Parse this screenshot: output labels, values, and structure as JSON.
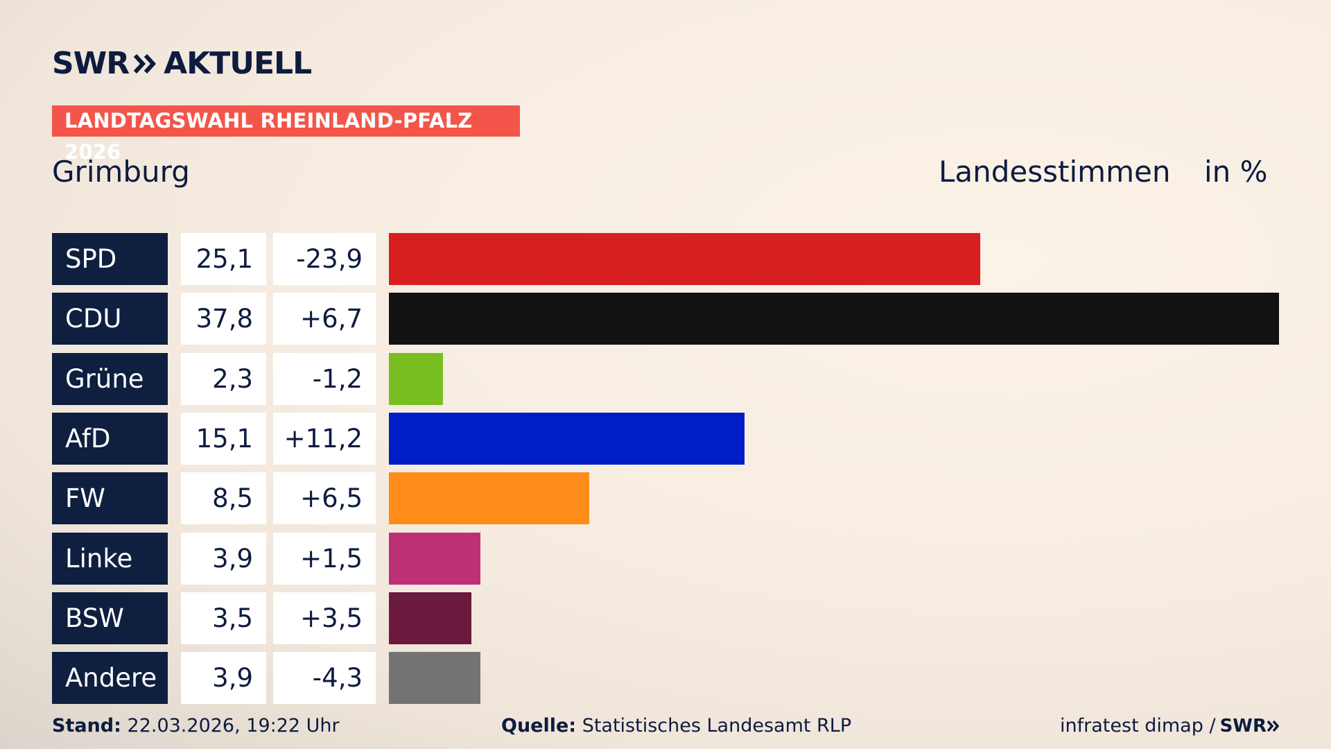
{
  "header": {
    "brand": "SWR",
    "product": "AKTUELL",
    "election_tag": "LANDTAGSWAHL RHEINLAND-PFALZ 2026",
    "location": "Grimburg",
    "vote_type": "Landesstimmen",
    "unit": "in %"
  },
  "footer": {
    "stand_label": "Stand:",
    "stand_value": "22.03.2026, 19:22 Uhr",
    "source_label": "Quelle:",
    "source_value": "Statistisches Landesamt RLP",
    "credit": "infratest dimap /",
    "credit_brand": "SWR"
  },
  "colors": {
    "brand_navy": "#0f1f3f",
    "tag_red": "#f4554a"
  },
  "chart_data": {
    "type": "bar",
    "orientation": "horizontal",
    "title": "Grimburg",
    "subtitle": "Landesstimmen",
    "unit": "in %",
    "categories": [
      "SPD",
      "CDU",
      "Grüne",
      "AfD",
      "FW",
      "Linke",
      "BSW",
      "Andere"
    ],
    "values": [
      25.1,
      37.8,
      2.3,
      15.1,
      8.5,
      3.9,
      3.5,
      3.9
    ],
    "value_labels": [
      "25,1",
      "37,8",
      "2,3",
      "15,1",
      "8,5",
      "3,9",
      "3,5",
      "3,9"
    ],
    "change_labels": [
      "-23,9",
      "+6,7",
      "-1,2",
      "+11,2",
      "+6,5",
      "+1,5",
      "+3,5",
      "-4,3"
    ],
    "changes": [
      -23.9,
      6.7,
      -1.2,
      11.2,
      6.5,
      1.5,
      3.5,
      -4.3
    ],
    "colors": [
      "#d71f1f",
      "#121212",
      "#78be20",
      "#001ec8",
      "#ff8c19",
      "#be3075",
      "#6b1a3e",
      "#737373"
    ],
    "xlim": [
      0,
      37.8
    ],
    "grid": false,
    "legend": "none"
  }
}
